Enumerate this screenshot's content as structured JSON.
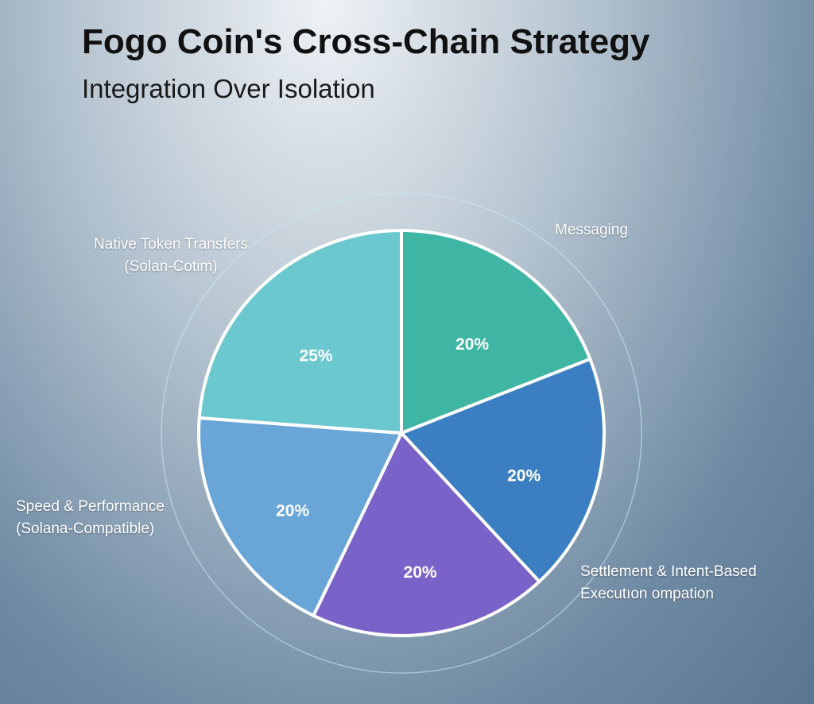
{
  "chart_data": {
    "type": "pie",
    "title": "Fogo Coin's Cross-Chain Strategy",
    "subtitle": "Integration Over Isolation",
    "categories": [
      "Messaging",
      null,
      "Settlement & Intent-Based\nExecutıon ompation",
      "Speed & Performance\n(Solana-Compatible)",
      "Native Token Transfers\n(Solan-Cotim)"
    ],
    "values": [
      20,
      20,
      20,
      20,
      25
    ],
    "value_labels": [
      "20%",
      "20%",
      "20%",
      "20%",
      "25%"
    ],
    "colors": [
      "#3fb5a3",
      "#3b7ec1",
      "#7a63c8",
      "#6aa5d8",
      "#6cc8cf"
    ]
  }
}
